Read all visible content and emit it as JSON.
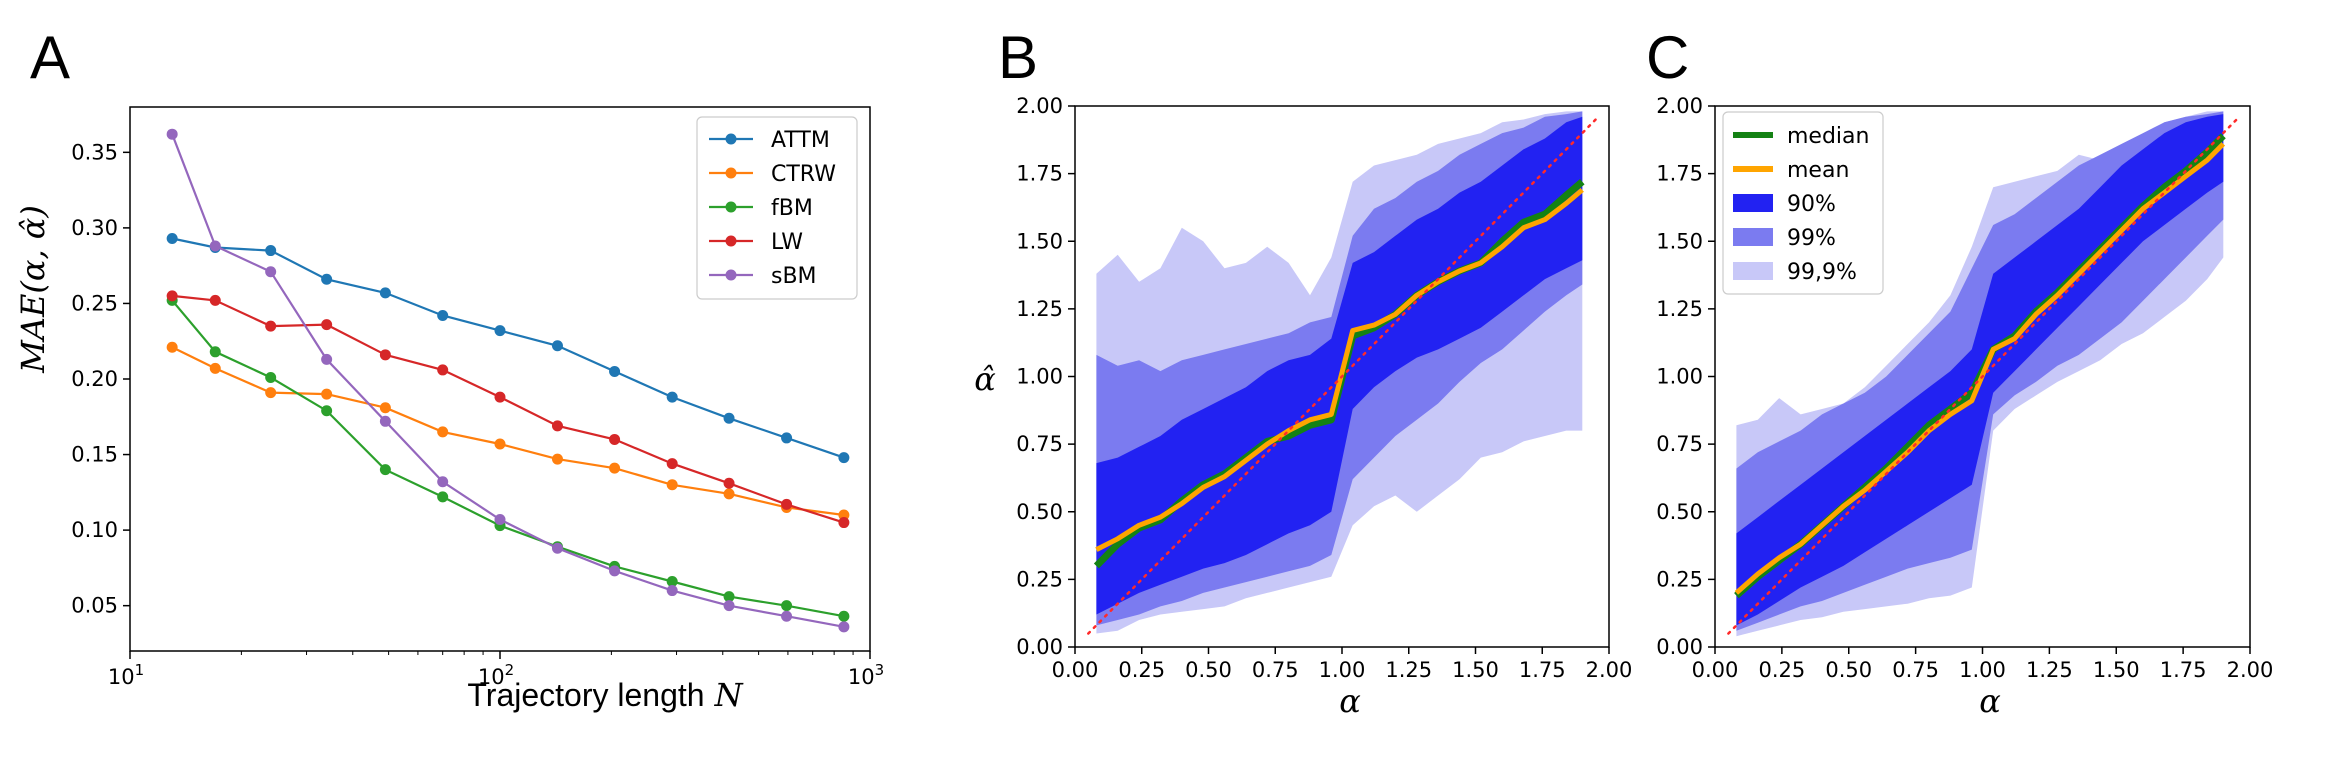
{
  "panels": [
    {
      "letter": "A",
      "xlabel": "Trajectory length",
      "xlabel_math": "N",
      "ylabel": "MAE(α, α̂)"
    },
    {
      "letter": "B",
      "xlabel_math": "α",
      "ylabel": "α̂"
    },
    {
      "letter": "C",
      "xlabel_math": "α"
    }
  ],
  "chart_data": [
    {
      "type": "line",
      "panel": "A",
      "xlabel": "Trajectory length N",
      "ylabel": "MAE(α, α̂)",
      "xscale": "log",
      "xlim": [
        10,
        1000
      ],
      "ylim": [
        0.02,
        0.38
      ],
      "xticks": [
        {
          "value": 10,
          "base": "10",
          "exp": "1"
        },
        {
          "value": 100,
          "base": "10",
          "exp": "2"
        },
        {
          "value": 1000,
          "base": "10",
          "exp": "3"
        }
      ],
      "yticks": [
        "0.05",
        "0.10",
        "0.15",
        "0.20",
        "0.25",
        "0.30",
        "0.35"
      ],
      "legend_position": "top-right",
      "x": [
        13,
        17,
        24,
        34,
        49,
        70,
        100,
        143,
        204,
        292,
        416,
        595,
        850
      ],
      "series": [
        {
          "name": "ATTM",
          "color": "#1f77b4",
          "values": [
            0.293,
            0.287,
            0.285,
            0.266,
            0.257,
            0.242,
            0.232,
            0.222,
            0.205,
            0.188,
            0.174,
            0.161,
            0.148
          ]
        },
        {
          "name": "CTRW",
          "color": "#ff7f0e",
          "values": [
            0.221,
            0.207,
            0.191,
            0.19,
            0.181,
            0.165,
            0.157,
            0.147,
            0.141,
            0.13,
            0.124,
            0.115,
            0.11
          ]
        },
        {
          "name": "fBM",
          "color": "#2ca02c",
          "values": [
            0.252,
            0.218,
            0.201,
            0.179,
            0.14,
            0.122,
            0.103,
            0.089,
            0.076,
            0.066,
            0.056,
            0.05,
            0.043
          ]
        },
        {
          "name": "LW",
          "color": "#d62728",
          "values": [
            0.255,
            0.252,
            0.235,
            0.236,
            0.216,
            0.206,
            0.188,
            0.169,
            0.16,
            0.144,
            0.131,
            0.117,
            0.105
          ]
        },
        {
          "name": "sBM",
          "color": "#9467bd",
          "values": [
            0.362,
            0.288,
            0.271,
            0.213,
            0.172,
            0.132,
            0.107,
            0.088,
            0.073,
            0.06,
            0.05,
            0.043,
            0.036
          ]
        }
      ]
    },
    {
      "type": "area",
      "panel": "B",
      "xlabel": "α",
      "ylabel": "α̂",
      "xlim": [
        0,
        2
      ],
      "ylim": [
        0,
        2
      ],
      "xticks": [
        "0.00",
        "0.25",
        "0.50",
        "0.75",
        "1.00",
        "1.25",
        "1.50",
        "1.75",
        "2.00"
      ],
      "yticks": [
        "0.00",
        "0.25",
        "0.50",
        "0.75",
        "1.00",
        "1.25",
        "1.50",
        "1.75",
        "2.00"
      ],
      "x": [
        0.08,
        0.16,
        0.24,
        0.32,
        0.4,
        0.48,
        0.56,
        0.64,
        0.72,
        0.8,
        0.88,
        0.96,
        1.04,
        1.12,
        1.2,
        1.28,
        1.36,
        1.44,
        1.52,
        1.6,
        1.68,
        1.76,
        1.84,
        1.9
      ],
      "bands": [
        {
          "name": "99,9%",
          "color": "#c8c8f8",
          "lower": [
            0.05,
            0.06,
            0.1,
            0.12,
            0.13,
            0.14,
            0.15,
            0.18,
            0.2,
            0.22,
            0.24,
            0.26,
            0.45,
            0.52,
            0.56,
            0.5,
            0.56,
            0.62,
            0.7,
            0.72,
            0.76,
            0.78,
            0.8,
            0.8
          ],
          "upper": [
            1.38,
            1.45,
            1.35,
            1.4,
            1.55,
            1.5,
            1.4,
            1.42,
            1.48,
            1.42,
            1.3,
            1.44,
            1.72,
            1.78,
            1.8,
            1.82,
            1.86,
            1.88,
            1.9,
            1.94,
            1.95,
            1.97,
            1.98,
            1.98
          ]
        },
        {
          "name": "99%",
          "color": "#7b7bf0",
          "lower": [
            0.08,
            0.1,
            0.12,
            0.15,
            0.17,
            0.2,
            0.22,
            0.24,
            0.26,
            0.28,
            0.3,
            0.34,
            0.62,
            0.7,
            0.78,
            0.84,
            0.9,
            0.98,
            1.05,
            1.1,
            1.17,
            1.24,
            1.3,
            1.34
          ],
          "upper": [
            1.08,
            1.04,
            1.06,
            1.02,
            1.06,
            1.08,
            1.1,
            1.12,
            1.14,
            1.16,
            1.2,
            1.22,
            1.52,
            1.62,
            1.66,
            1.72,
            1.76,
            1.82,
            1.86,
            1.9,
            1.92,
            1.96,
            1.97,
            1.98
          ]
        },
        {
          "name": "90%",
          "color": "#2222f2",
          "lower": [
            0.12,
            0.16,
            0.2,
            0.23,
            0.26,
            0.29,
            0.31,
            0.34,
            0.38,
            0.42,
            0.45,
            0.5,
            0.88,
            0.96,
            1.02,
            1.07,
            1.1,
            1.14,
            1.18,
            1.24,
            1.3,
            1.36,
            1.4,
            1.43
          ],
          "upper": [
            0.68,
            0.7,
            0.74,
            0.78,
            0.84,
            0.88,
            0.92,
            0.96,
            1.02,
            1.06,
            1.08,
            1.14,
            1.42,
            1.46,
            1.52,
            1.58,
            1.62,
            1.68,
            1.72,
            1.78,
            1.84,
            1.88,
            1.94,
            1.96
          ]
        }
      ],
      "series": [
        {
          "name": "median",
          "color": "#148214",
          "values": [
            0.3,
            0.38,
            0.44,
            0.47,
            0.54,
            0.6,
            0.64,
            0.7,
            0.76,
            0.78,
            0.82,
            0.84,
            1.15,
            1.18,
            1.23,
            1.3,
            1.35,
            1.39,
            1.42,
            1.5,
            1.57,
            1.6,
            1.67,
            1.72
          ]
        },
        {
          "name": "mean",
          "color": "#ffa500",
          "values": [
            0.36,
            0.4,
            0.45,
            0.48,
            0.53,
            0.59,
            0.63,
            0.69,
            0.75,
            0.8,
            0.84,
            0.86,
            1.17,
            1.19,
            1.23,
            1.3,
            1.35,
            1.39,
            1.42,
            1.48,
            1.55,
            1.58,
            1.64,
            1.69
          ]
        },
        {
          "name": "diagonal",
          "color": "#ff2a2a",
          "dotted": true,
          "x": [
            0.05,
            1.95
          ],
          "values": [
            0.05,
            1.95
          ]
        }
      ]
    },
    {
      "type": "area",
      "panel": "C",
      "xlabel": "α",
      "xlim": [
        0,
        2
      ],
      "ylim": [
        0,
        2
      ],
      "xticks": [
        "0.00",
        "0.25",
        "0.50",
        "0.75",
        "1.00",
        "1.25",
        "1.50",
        "1.75",
        "2.00"
      ],
      "yticks": [
        "0.00",
        "0.25",
        "0.50",
        "0.75",
        "1.00",
        "1.25",
        "1.50",
        "1.75",
        "2.00"
      ],
      "legend_position": "top-left",
      "x": [
        0.08,
        0.16,
        0.24,
        0.32,
        0.4,
        0.48,
        0.56,
        0.64,
        0.72,
        0.8,
        0.88,
        0.96,
        1.04,
        1.12,
        1.2,
        1.28,
        1.36,
        1.44,
        1.52,
        1.6,
        1.68,
        1.76,
        1.84,
        1.9
      ],
      "bands": [
        {
          "name": "99,9%",
          "color": "#c8c8f8",
          "lower": [
            0.04,
            0.06,
            0.08,
            0.1,
            0.11,
            0.13,
            0.14,
            0.15,
            0.16,
            0.18,
            0.19,
            0.22,
            0.8,
            0.88,
            0.93,
            0.98,
            1.02,
            1.06,
            1.12,
            1.16,
            1.22,
            1.28,
            1.36,
            1.44
          ],
          "upper": [
            0.82,
            0.84,
            0.92,
            0.86,
            0.88,
            0.9,
            0.96,
            1.04,
            1.12,
            1.2,
            1.3,
            1.48,
            1.7,
            1.72,
            1.74,
            1.76,
            1.82,
            1.8,
            1.84,
            1.88,
            1.94,
            1.96,
            1.98,
            1.98
          ]
        },
        {
          "name": "99%",
          "color": "#7b7bf0",
          "lower": [
            0.06,
            0.09,
            0.12,
            0.15,
            0.17,
            0.2,
            0.23,
            0.26,
            0.29,
            0.31,
            0.33,
            0.36,
            0.86,
            0.93,
            0.98,
            1.04,
            1.08,
            1.14,
            1.2,
            1.28,
            1.36,
            1.44,
            1.52,
            1.58
          ],
          "upper": [
            0.66,
            0.72,
            0.76,
            0.8,
            0.86,
            0.9,
            0.94,
            1.0,
            1.08,
            1.16,
            1.24,
            1.4,
            1.56,
            1.6,
            1.66,
            1.72,
            1.78,
            1.82,
            1.86,
            1.9,
            1.94,
            1.96,
            1.97,
            1.98
          ]
        },
        {
          "name": "90%",
          "color": "#2222f2",
          "lower": [
            0.08,
            0.12,
            0.17,
            0.22,
            0.26,
            0.3,
            0.35,
            0.4,
            0.45,
            0.5,
            0.55,
            0.6,
            0.94,
            1.02,
            1.1,
            1.18,
            1.26,
            1.34,
            1.42,
            1.5,
            1.56,
            1.62,
            1.68,
            1.72
          ],
          "upper": [
            0.42,
            0.48,
            0.54,
            0.6,
            0.66,
            0.72,
            0.78,
            0.84,
            0.9,
            0.96,
            1.02,
            1.1,
            1.38,
            1.44,
            1.5,
            1.56,
            1.62,
            1.7,
            1.78,
            1.84,
            1.9,
            1.94,
            1.96,
            1.97
          ]
        }
      ],
      "series": [
        {
          "name": "median",
          "color": "#148214",
          "values": [
            0.19,
            0.26,
            0.32,
            0.38,
            0.45,
            0.52,
            0.59,
            0.66,
            0.74,
            0.82,
            0.88,
            0.94,
            1.1,
            1.15,
            1.24,
            1.31,
            1.39,
            1.47,
            1.55,
            1.63,
            1.7,
            1.76,
            1.83,
            1.89
          ]
        },
        {
          "name": "mean",
          "color": "#ffa500",
          "values": [
            0.2,
            0.27,
            0.33,
            0.38,
            0.45,
            0.52,
            0.58,
            0.65,
            0.72,
            0.8,
            0.86,
            0.91,
            1.1,
            1.14,
            1.23,
            1.3,
            1.38,
            1.46,
            1.54,
            1.62,
            1.68,
            1.74,
            1.8,
            1.86
          ]
        },
        {
          "name": "diagonal",
          "color": "#ff2a2a",
          "dotted": true,
          "x": [
            0.05,
            1.95
          ],
          "values": [
            0.05,
            1.95
          ]
        }
      ],
      "legend": [
        {
          "label": "median",
          "kind": "line",
          "color": "#148214"
        },
        {
          "label": "mean",
          "kind": "line",
          "color": "#ffa500"
        },
        {
          "label": "90%",
          "kind": "patch",
          "color": "#2222f2"
        },
        {
          "label": "99%",
          "kind": "patch",
          "color": "#7b7bf0"
        },
        {
          "label": "99,9%",
          "kind": "patch",
          "color": "#c8c8f8"
        }
      ]
    }
  ]
}
